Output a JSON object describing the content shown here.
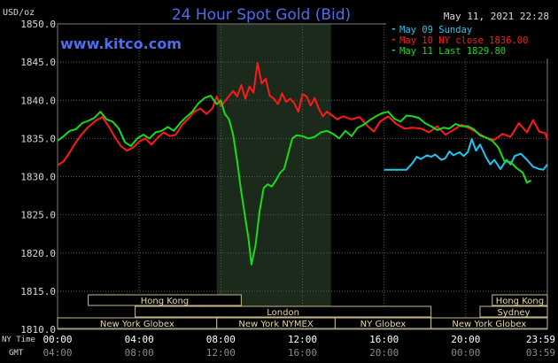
{
  "chart_data": {
    "type": "line",
    "title": "24 Hour Spot Gold (Bid)",
    "watermark": "www.kitco.com",
    "timestamp": "May 11, 2021 22:28",
    "units_label": "USD/oz",
    "ylim": [
      1810,
      1850
    ],
    "y_ticks": [
      "1850.0",
      "1845.0",
      "1840.0",
      "1835.0",
      "1830.0",
      "1825.0",
      "1820.0",
      "1815.0",
      "1810.0"
    ],
    "x_ticks_ny": [
      "00:00",
      "04:00",
      "08:00",
      "12:00",
      "16:00",
      "20:00",
      "23:59"
    ],
    "x_ticks_gmt": [
      "04:00",
      "08:00",
      "12:00",
      "16:00",
      "20:00",
      "00:00",
      "03:59"
    ],
    "row_label_ny": "NY Time",
    "row_label_gmt": "GMT",
    "shaded_region_hours": [
      7.8,
      13.4
    ],
    "series": [
      {
        "name": "May 09 Sunday",
        "color": "#1ec8f0",
        "x": [
          16.0,
          16.7,
          17.1,
          17.4,
          17.6,
          17.8,
          18.1,
          18.3,
          18.5,
          18.8,
          19.0,
          19.2,
          19.4,
          19.7,
          19.9,
          20.1,
          20.3,
          20.5,
          20.7,
          21.0,
          21.2,
          21.4,
          21.7,
          22.0,
          22.2,
          22.4,
          22.7,
          23.0,
          23.3,
          23.6,
          23.8,
          24.0
        ],
        "values": [
          1830.9,
          1830.9,
          1830.9,
          1831.8,
          1832.6,
          1832.3,
          1832.8,
          1832.6,
          1832.9,
          1832.2,
          1832.4,
          1833.3,
          1832.8,
          1833.2,
          1832.7,
          1833.2,
          1834.9,
          1833.4,
          1834.2,
          1832.5,
          1831.6,
          1832.2,
          1831.0,
          1832.2,
          1831.6,
          1832.7,
          1833.0,
          1832.2,
          1831.3,
          1831.0,
          1830.9,
          1831.6
        ]
      },
      {
        "name": "May 10 NY close 1836.00",
        "color": "#ff1a1a",
        "x": [
          0.0,
          0.3,
          0.6,
          0.9,
          1.2,
          1.5,
          1.9,
          2.2,
          2.5,
          2.8,
          3.1,
          3.4,
          3.7,
          4.0,
          4.3,
          4.6,
          4.9,
          5.2,
          5.5,
          5.8,
          6.1,
          6.4,
          6.7,
          7.0,
          7.3,
          7.6,
          7.8,
          8.0,
          8.3,
          8.6,
          8.8,
          9.0,
          9.2,
          9.4,
          9.6,
          9.8,
          10.0,
          10.2,
          10.4,
          10.6,
          10.8,
          11.0,
          11.2,
          11.4,
          11.6,
          11.8,
          12.0,
          12.2,
          12.4,
          12.6,
          12.8,
          13.0,
          13.2,
          13.4,
          13.7,
          14.0,
          14.4,
          14.8,
          15.2,
          15.5,
          15.8,
          16.2,
          16.6,
          17.0,
          17.4,
          17.8,
          18.2,
          18.6,
          19.0,
          19.4,
          19.8,
          20.2,
          20.6,
          21.0,
          21.4,
          21.8,
          22.2,
          22.6,
          23.0,
          23.3,
          23.6,
          23.9,
          24.0
        ],
        "values": [
          1831.5,
          1832.0,
          1833.2,
          1834.5,
          1835.6,
          1836.5,
          1837.4,
          1837.8,
          1836.6,
          1835.2,
          1834.0,
          1833.4,
          1833.8,
          1834.6,
          1835.0,
          1834.2,
          1835.1,
          1835.8,
          1835.3,
          1835.5,
          1836.8,
          1837.6,
          1838.5,
          1838.9,
          1838.2,
          1839.0,
          1840.5,
          1839.2,
          1840.2,
          1841.2,
          1840.5,
          1842.0,
          1840.2,
          1841.8,
          1841.0,
          1844.9,
          1842.2,
          1842.8,
          1840.6,
          1840.2,
          1839.5,
          1840.9,
          1839.8,
          1840.2,
          1839.6,
          1838.5,
          1840.8,
          1840.5,
          1839.3,
          1840.3,
          1838.9,
          1837.9,
          1838.5,
          1838.1,
          1837.5,
          1837.9,
          1837.5,
          1837.8,
          1836.6,
          1835.9,
          1837.2,
          1837.9,
          1836.9,
          1836.3,
          1836.4,
          1836.3,
          1835.8,
          1836.6,
          1835.5,
          1836.1,
          1836.8,
          1836.3,
          1835.7,
          1835.1,
          1834.8,
          1835.6,
          1835.2,
          1837.0,
          1835.8,
          1837.4,
          1835.9,
          1835.7,
          1834.8
        ]
      },
      {
        "name": "May 11 Last 1829.80",
        "color": "#19dc19",
        "x": [
          0.0,
          0.3,
          0.6,
          0.9,
          1.2,
          1.5,
          1.8,
          2.1,
          2.4,
          2.7,
          3.0,
          3.3,
          3.6,
          3.9,
          4.2,
          4.5,
          4.8,
          5.1,
          5.4,
          5.7,
          6.0,
          6.3,
          6.6,
          6.9,
          7.2,
          7.5,
          7.8,
          8.0,
          8.2,
          8.4,
          8.6,
          8.8,
          9.0,
          9.2,
          9.35,
          9.5,
          9.7,
          9.9,
          10.1,
          10.3,
          10.5,
          10.7,
          10.9,
          11.1,
          11.3,
          11.5,
          11.7,
          12.0,
          12.3,
          12.6,
          12.9,
          13.2,
          13.5,
          13.8,
          14.1,
          14.4,
          14.7,
          15.0,
          15.3,
          15.6,
          15.9,
          16.2,
          16.5,
          16.8,
          17.1,
          17.4,
          17.7,
          18.0,
          18.3,
          18.6,
          18.9,
          19.2,
          19.5,
          19.8,
          20.1,
          20.4,
          20.7,
          21.0,
          21.3,
          21.6,
          21.9,
          22.2,
          22.5,
          22.8,
          23.0,
          23.2
        ],
        "values": [
          1834.7,
          1835.3,
          1836.0,
          1836.2,
          1837.0,
          1837.3,
          1837.7,
          1838.5,
          1837.5,
          1837.2,
          1836.3,
          1834.5,
          1834.0,
          1835.0,
          1835.5,
          1835.0,
          1835.8,
          1836.0,
          1836.5,
          1836.0,
          1837.0,
          1837.8,
          1838.5,
          1839.6,
          1840.3,
          1840.6,
          1839.5,
          1840.0,
          1838.2,
          1837.5,
          1835.5,
          1832.0,
          1828.0,
          1824.5,
          1822.0,
          1818.5,
          1821.0,
          1825.5,
          1828.5,
          1829.0,
          1828.7,
          1829.5,
          1830.5,
          1831.0,
          1833.0,
          1835.0,
          1835.4,
          1835.3,
          1835.0,
          1835.2,
          1835.8,
          1836.0,
          1835.6,
          1835.0,
          1836.0,
          1835.3,
          1836.4,
          1836.8,
          1837.4,
          1837.9,
          1838.3,
          1838.5,
          1837.6,
          1837.2,
          1838.0,
          1837.9,
          1837.7,
          1837.0,
          1836.6,
          1836.1,
          1836.4,
          1836.3,
          1836.9,
          1836.6,
          1836.6,
          1836.2,
          1835.4,
          1835.1,
          1834.7,
          1833.8,
          1832.0,
          1831.9,
          1831.1,
          1830.5,
          1829.2,
          1829.5
        ]
      }
    ],
    "market_sessions": [
      {
        "name": "Hong Kong",
        "start": 1.5,
        "end": 9.0,
        "row": 1
      },
      {
        "name": "London",
        "start": 3.8,
        "end": 18.3,
        "row": 2
      },
      {
        "name": "New York Globex",
        "start": 0.0,
        "end": 7.8,
        "row": 3
      },
      {
        "name": "New York NYMEX",
        "start": 7.8,
        "end": 13.6,
        "row": 3
      },
      {
        "name": "NY Globex",
        "start": 13.6,
        "end": 18.3,
        "row": 3
      },
      {
        "name": "Hong Kong",
        "start": 21.3,
        "end": 24.0,
        "row": 1
      },
      {
        "name": "Sydney",
        "start": 20.7,
        "end": 24.0,
        "row": 2
      },
      {
        "name": "New York Globex",
        "start": 18.3,
        "end": 24.0,
        "row": 3
      }
    ]
  }
}
